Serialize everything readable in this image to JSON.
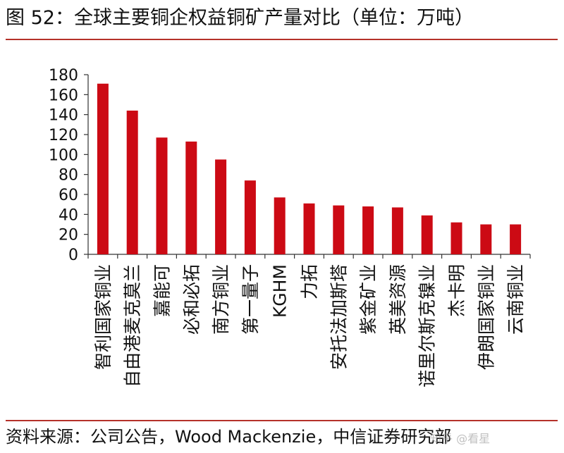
{
  "header": {
    "title": "图 52：全球主要铜企权益铜矿产量对比（单位：万吨）"
  },
  "footer": {
    "source": "资料来源：公司公告，Wood Mackenzie，中信证券研究部",
    "watermark": "知乎 @看星"
  },
  "colors": {
    "bar": "#cc0a14",
    "rule": "#b5322a",
    "axis": "#333333"
  },
  "chart_data": {
    "type": "bar",
    "categories": [
      "智利国家铜业",
      "自由港麦克莫兰",
      "嘉能可",
      "必和必拓",
      "南方铜业",
      "第一量子",
      "KGHM",
      "力拓",
      "安托法加斯塔",
      "紫金矿业",
      "英美资源",
      "诺里尔斯克镍业",
      "杰卡明",
      "伊朗国家铜业",
      "云南铜业"
    ],
    "values": [
      171,
      144,
      117,
      113,
      95,
      74,
      57,
      51,
      49,
      48,
      47,
      39,
      32,
      30,
      30
    ],
    "ylim": [
      0,
      180
    ],
    "yticks": [
      0,
      20,
      40,
      60,
      80,
      100,
      120,
      140,
      160,
      180
    ],
    "xlabel": "",
    "ylabel": "",
    "grid": false,
    "legend": "none"
  }
}
